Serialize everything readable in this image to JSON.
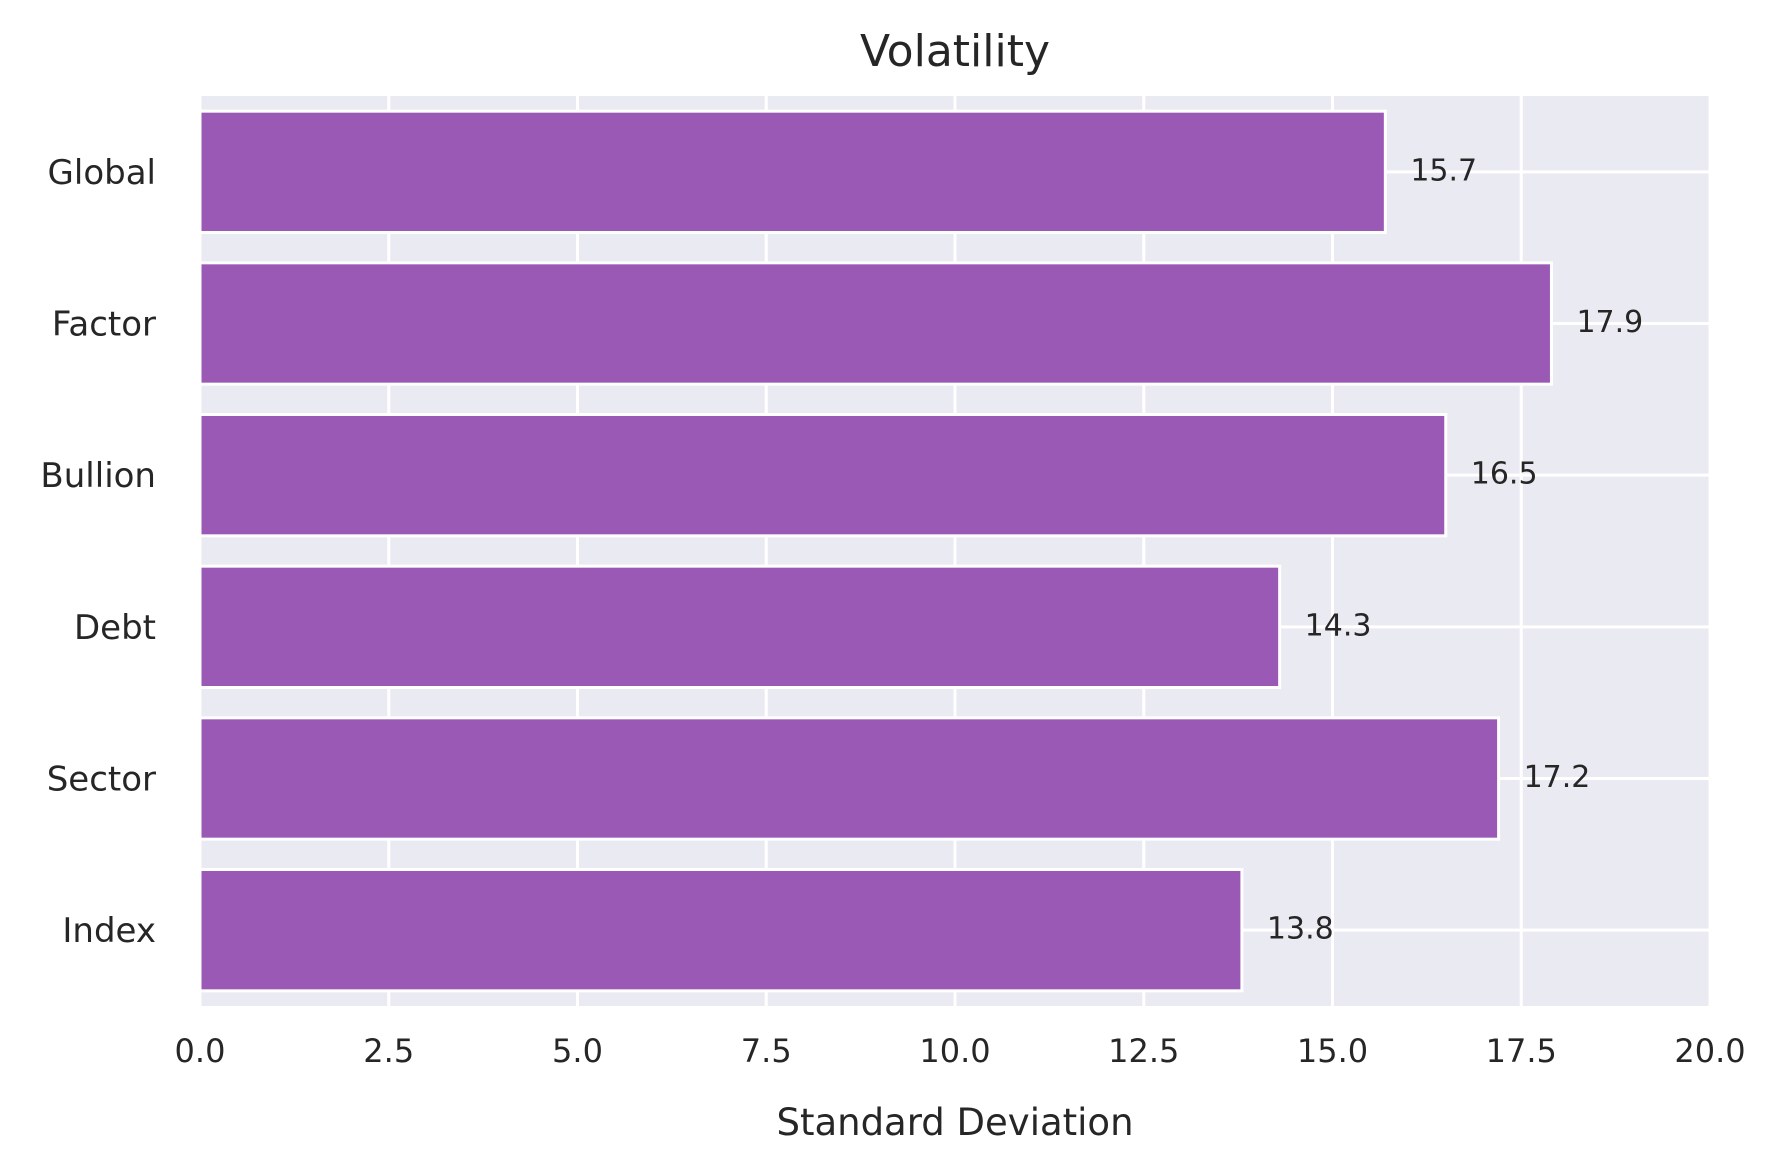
{
  "chart_data": {
    "type": "bar",
    "orientation": "horizontal",
    "title": "Volatility",
    "xlabel": "Standard Deviation",
    "ylabel": "",
    "categories": [
      "Index",
      "Sector",
      "Debt",
      "Bullion",
      "Factor",
      "Global"
    ],
    "values": [
      13.8,
      17.2,
      14.3,
      16.5,
      17.9,
      15.7
    ],
    "data_labels": [
      "13.8",
      "17.2",
      "14.3",
      "16.5",
      "17.9",
      "15.7"
    ],
    "xlim": [
      0,
      20
    ],
    "xticks": [
      0,
      2.5,
      5,
      7.5,
      10,
      12.5,
      15,
      17.5,
      20
    ],
    "xtick_labels": [
      "0.0",
      "2.5",
      "5.0",
      "7.5",
      "10.0",
      "12.5",
      "15.0",
      "17.5",
      "20.0"
    ],
    "grid": true,
    "legend": "none",
    "colors": {
      "bar": "#9b59b6",
      "background": "#eaeaf2",
      "grid": "#ffffff",
      "text": "#262626"
    }
  }
}
